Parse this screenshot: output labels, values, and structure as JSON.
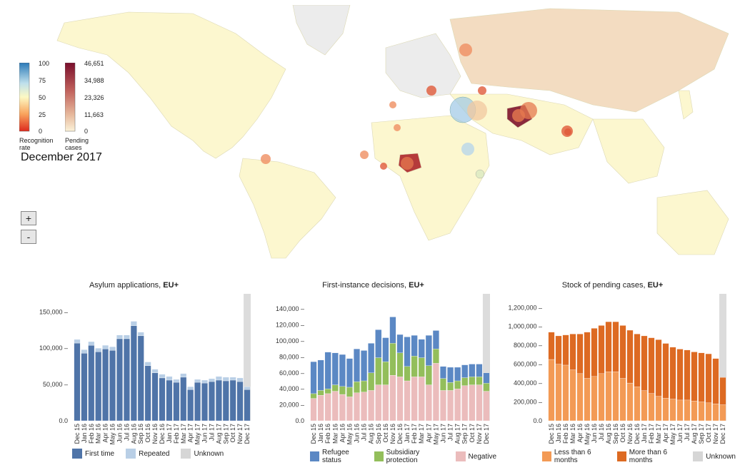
{
  "map": {
    "date_label": "December 2017",
    "zoom_in": "+",
    "zoom_out": "-",
    "legend_rate": {
      "title_line1": "Recognition",
      "title_line2": "rate",
      "ticks": [
        "100",
        "75",
        "50",
        "25",
        "0"
      ]
    },
    "legend_pending": {
      "title_line1": "Pending",
      "title_line2": "cases",
      "ticks": [
        "46,651",
        "34,988",
        "23,326",
        "11,663",
        "0"
      ]
    }
  },
  "colors": {
    "first_time": "#4f74a8",
    "repeated": "#b9cfe6",
    "unknown": "#d6d6d6",
    "refugee": "#5b88c4",
    "subsidiary": "#93be5b",
    "negative": "#ebbcbc",
    "less6": "#f39a55",
    "more6": "#dd6a22"
  },
  "chart_data": [
    {
      "type": "bar",
      "title": "Asylum applications, ",
      "title_bold": "EU+",
      "categories": [
        "Dec 15",
        "Jan 16",
        "Feb 16",
        "Mar 16",
        "Apr 16",
        "May 16",
        "Jun 16",
        "Jul 16",
        "Aug 16",
        "Sep 16",
        "Oct 16",
        "Nov 16",
        "Dec 16",
        "Jan 17",
        "Feb 17",
        "Mar 17",
        "Apr 17",
        "May 17",
        "Jun 17",
        "Jul 17",
        "Aug 17",
        "Sep 17",
        "Oct 17",
        "Nov 17",
        "Dec 17"
      ],
      "yticks": [
        0,
        50000,
        100000,
        150000
      ],
      "ytick_labels": [
        "0.0",
        "50,000 –",
        "100,000 –",
        "150,000 –"
      ],
      "ylim": [
        0,
        165000
      ],
      "stacked": true,
      "highlight_last": true,
      "series": [
        {
          "name": "First time",
          "color_key": "first_time",
          "values": [
            107000,
            93000,
            104000,
            95000,
            99000,
            97000,
            113000,
            113000,
            131000,
            117000,
            76000,
            66000,
            59000,
            56000,
            53000,
            60000,
            43000,
            53000,
            52000,
            54000,
            56000,
            55000,
            56000,
            54000,
            43000
          ]
        },
        {
          "name": "Repeated",
          "color_key": "repeated",
          "values": [
            5000,
            5000,
            5000,
            5000,
            5000,
            5000,
            5000,
            5000,
            6000,
            5000,
            5000,
            5000,
            5000,
            5000,
            4000,
            5000,
            4000,
            4000,
            4000,
            4000,
            5000,
            5000,
            4000,
            5000,
            4000
          ]
        },
        {
          "name": "Unknown",
          "color_key": "unknown",
          "values": [
            0,
            0,
            0,
            0,
            0,
            0,
            0,
            0,
            0,
            0,
            0,
            0,
            0,
            0,
            0,
            0,
            0,
            0,
            0,
            0,
            0,
            0,
            0,
            0,
            0
          ]
        }
      ]
    },
    {
      "type": "bar",
      "title": "First-instance decisions, ",
      "title_bold": "EU+",
      "categories": [
        "Dec 15",
        "Jan 16",
        "Feb 16",
        "Mar 16",
        "Apr 16",
        "May 16",
        "Jun 16",
        "Jul 16",
        "Aug 16",
        "Sep 16",
        "Oct 16",
        "Nov 16",
        "Dec 16",
        "Jan 17",
        "Feb 17",
        "Mar 17",
        "Apr 17",
        "May 17",
        "Jun 17",
        "Jul 17",
        "Aug 17",
        "Sep 17",
        "Oct 17",
        "Nov 17",
        "Dec 17"
      ],
      "yticks": [
        0,
        20000,
        40000,
        60000,
        80000,
        100000,
        120000,
        140000
      ],
      "ytick_labels": [
        "0.0",
        "20,000 –",
        "40,000 –",
        "60,000 –",
        "80,000 –",
        "100,000 –",
        "120,000 –",
        "140,000 –"
      ],
      "ylim": [
        0,
        150000
      ],
      "stacked": true,
      "highlight_last": true,
      "series": [
        {
          "name": "Negative",
          "color_key": "negative",
          "values": [
            28000,
            32000,
            34000,
            37000,
            33000,
            30000,
            35000,
            36000,
            38000,
            45000,
            45000,
            57000,
            55000,
            50000,
            55000,
            55000,
            45000,
            72000,
            38000,
            38000,
            40000,
            44000,
            45000,
            45000,
            37000
          ]
        },
        {
          "name": "Subsidiary protection",
          "color_key": "subsidiary",
          "values": [
            6000,
            6000,
            6000,
            8000,
            10000,
            12000,
            14000,
            14000,
            22000,
            34000,
            29000,
            40000,
            30000,
            18000,
            26000,
            24000,
            24000,
            18000,
            15000,
            10000,
            10000,
            10000,
            10000,
            10000,
            10000
          ]
        },
        {
          "name": "Refugee status",
          "color_key": "refugee",
          "values": [
            40000,
            38000,
            46000,
            40000,
            40000,
            36000,
            41000,
            38000,
            37000,
            35000,
            30000,
            33000,
            23000,
            37000,
            26000,
            23000,
            38000,
            23000,
            15000,
            19000,
            17000,
            16000,
            16000,
            16000,
            13000
          ]
        }
      ]
    },
    {
      "type": "bar",
      "title": "Stock of pending cases, ",
      "title_bold": "EU+",
      "categories": [
        "Dec 15",
        "Jan 16",
        "Feb 16",
        "Mar 16",
        "Apr 16",
        "May 16",
        "Jun 16",
        "Jul 16",
        "Aug 16",
        "Sep 16",
        "Oct 16",
        "Nov 16",
        "Dec 16",
        "Jan 17",
        "Feb 17",
        "Mar 17",
        "Apr 17",
        "May 17",
        "Jun 17",
        "Jul 17",
        "Aug 17",
        "Sep 17",
        "Oct 17",
        "Nov 17",
        "Dec 17"
      ],
      "yticks": [
        0,
        200000,
        400000,
        600000,
        800000,
        1000000,
        1200000
      ],
      "ytick_labels": [
        "0.0",
        "200,000 –",
        "400,000 –",
        "600,000 –",
        "800,000 –",
        "1,000,000 –",
        "1,200,000 –"
      ],
      "ylim": [
        0,
        1270000
      ],
      "stacked": true,
      "highlight_last": true,
      "series": [
        {
          "name": "Less than 6 months",
          "color_key": "less6",
          "values": [
            650000,
            600000,
            590000,
            540000,
            500000,
            450000,
            470000,
            500000,
            520000,
            520000,
            450000,
            400000,
            360000,
            320000,
            290000,
            260000,
            240000,
            230000,
            220000,
            220000,
            210000,
            200000,
            190000,
            180000,
            170000
          ]
        },
        {
          "name": "More than 6 months",
          "color_key": "more6",
          "values": [
            290000,
            300000,
            320000,
            380000,
            420000,
            490000,
            510000,
            510000,
            530000,
            530000,
            560000,
            560000,
            560000,
            580000,
            590000,
            600000,
            580000,
            550000,
            540000,
            530000,
            520000,
            520000,
            520000,
            480000,
            290000
          ]
        },
        {
          "name": "Unknown",
          "color_key": "unknown",
          "values": [
            0,
            0,
            0,
            0,
            0,
            0,
            0,
            0,
            0,
            0,
            0,
            0,
            0,
            0,
            0,
            0,
            0,
            0,
            0,
            0,
            0,
            0,
            0,
            0,
            0
          ]
        }
      ]
    }
  ],
  "map_bubbles": [
    {
      "label": "syria",
      "size": 28,
      "color": "#9ec8e6"
    },
    {
      "label": "iraq",
      "size": 20,
      "color": "#f2c8a0"
    },
    {
      "label": "afghanistan",
      "size": 16,
      "color": "#d8b49c"
    },
    {
      "label": "pakistan",
      "size": 14,
      "color": "#e5794f"
    },
    {
      "label": "nigeria",
      "size": 10,
      "color": "#e5794f"
    }
  ]
}
